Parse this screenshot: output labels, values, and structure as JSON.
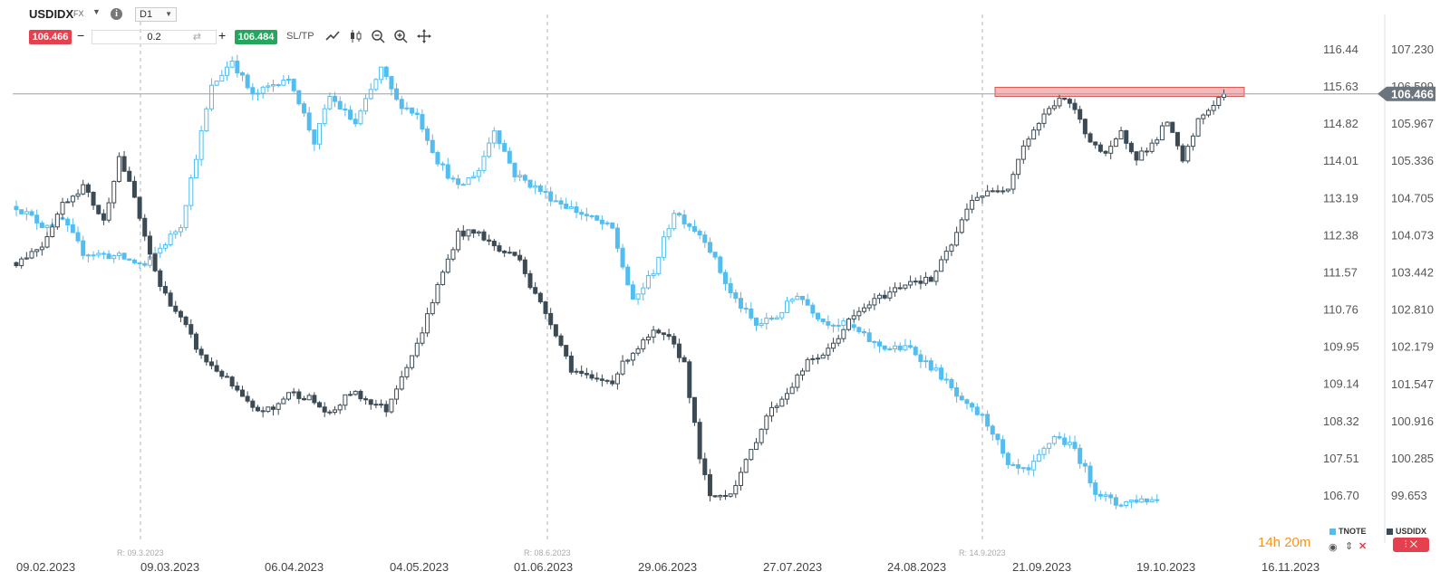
{
  "toolbar": {
    "symbol": "USDIDX",
    "symbol_type": "FX",
    "timeframe": "D1",
    "sell_price": "106.466",
    "buy_price": "106.484",
    "volume": "0.2",
    "minus": "−",
    "plus": "+",
    "sltp_label": "SL/TP",
    "icons": [
      "caret-down-icon",
      "info-icon",
      "line-chart-icon",
      "candle-type-icon",
      "zoom-out-icon",
      "zoom-in-icon",
      "move-icon"
    ]
  },
  "legend": {
    "series1": "TNOTE",
    "series2": "USDIDX",
    "timer": "14h 20m"
  },
  "colors": {
    "tnote": "#53bdf0",
    "usdidx": "#3b4a54",
    "sell": "#e5404d",
    "buy": "#24a65e",
    "resistance_zone": "#f4b9b9",
    "timer": "#f7941d"
  },
  "chart_data": {
    "type": "candlestick",
    "x_labels": [
      "09.02.2023",
      "09.03.2023",
      "06.04.2023",
      "04.05.2023",
      "01.06.2023",
      "29.06.2023",
      "27.07.2023",
      "24.08.2023",
      "21.09.2023",
      "19.10.2023",
      "16.11.2023"
    ],
    "y_axis_tnote": [
      "116.44",
      "115.63",
      "114.82",
      "114.01",
      "113.19",
      "112.38",
      "111.57",
      "110.76",
      "109.95",
      "109.14",
      "108.32",
      "107.51",
      "106.70"
    ],
    "y_axis_usdidx": [
      "107.230",
      "106.599",
      "105.967",
      "105.336",
      "104.705",
      "104.073",
      "103.442",
      "102.810",
      "102.179",
      "101.547",
      "100.916",
      "100.285",
      "99.653"
    ],
    "current_price_label": "106.466",
    "current_price": 106.466,
    "rollover_labels": [
      "R: 09.3.2023",
      "R: 08.6.2023",
      "R: 14.9.2023"
    ],
    "resistance_zone_usdidx": [
      106.47,
      106.53
    ],
    "grid": false,
    "series": [
      {
        "name": "TNOTE",
        "color": "#53bdf0",
        "keypoints": [
          [
            0,
            113.0
          ],
          [
            5,
            112.6
          ],
          [
            9,
            112.7
          ],
          [
            13,
            112.0
          ],
          [
            20,
            111.9
          ],
          [
            25,
            111.7
          ],
          [
            32,
            112.6
          ],
          [
            38,
            115.6
          ],
          [
            42,
            116.2
          ],
          [
            46,
            115.4
          ],
          [
            52,
            115.8
          ],
          [
            54,
            115.6
          ],
          [
            58,
            114.4
          ],
          [
            61,
            115.4
          ],
          [
            66,
            114.8
          ],
          [
            71,
            116.0
          ],
          [
            74,
            115.3
          ],
          [
            78,
            115.0
          ],
          [
            82,
            114.0
          ],
          [
            86,
            113.4
          ],
          [
            90,
            113.8
          ],
          [
            93,
            114.7
          ],
          [
            97,
            113.7
          ],
          [
            104,
            113.2
          ],
          [
            109,
            112.9
          ],
          [
            116,
            112.5
          ],
          [
            120,
            110.9
          ],
          [
            124,
            111.6
          ],
          [
            128,
            112.9
          ],
          [
            134,
            112.3
          ],
          [
            139,
            111.1
          ],
          [
            144,
            110.4
          ],
          [
            148,
            110.6
          ],
          [
            152,
            111.1
          ],
          [
            157,
            110.5
          ],
          [
            162,
            110.4
          ],
          [
            167,
            110.0
          ],
          [
            170,
            109.9
          ],
          [
            174,
            109.9
          ],
          [
            177,
            109.6
          ],
          [
            180,
            109.3
          ],
          [
            184,
            108.7
          ],
          [
            188,
            108.4
          ],
          [
            190,
            108.1
          ],
          [
            193,
            107.3
          ],
          [
            197,
            107.2
          ],
          [
            202,
            108.0
          ],
          [
            206,
            107.7
          ],
          [
            210,
            106.8
          ],
          [
            214,
            106.5
          ],
          [
            218,
            106.6
          ],
          [
            222,
            106.6
          ]
        ]
      },
      {
        "name": "USDIDX",
        "color": "#3b4a54",
        "keypoints": [
          [
            0,
            103.6
          ],
          [
            5,
            103.9
          ],
          [
            9,
            104.6
          ],
          [
            13,
            104.9
          ],
          [
            17,
            104.3
          ],
          [
            20,
            105.4
          ],
          [
            23,
            104.7
          ],
          [
            25,
            104.0
          ],
          [
            28,
            103.2
          ],
          [
            33,
            102.5
          ],
          [
            36,
            102.0
          ],
          [
            40,
            101.7
          ],
          [
            43,
            101.4
          ],
          [
            46,
            101.1
          ],
          [
            50,
            101.1
          ],
          [
            53,
            101.4
          ],
          [
            57,
            101.3
          ],
          [
            61,
            101.0
          ],
          [
            65,
            101.4
          ],
          [
            70,
            101.2
          ],
          [
            72,
            101.1
          ],
          [
            75,
            101.7
          ],
          [
            78,
            102.2
          ],
          [
            82,
            103.2
          ],
          [
            86,
            104.1
          ],
          [
            90,
            104.1
          ],
          [
            94,
            103.8
          ],
          [
            98,
            103.7
          ],
          [
            100,
            103.2
          ],
          [
            104,
            102.6
          ],
          [
            108,
            101.8
          ],
          [
            112,
            101.6
          ],
          [
            116,
            101.6
          ],
          [
            119,
            102.0
          ],
          [
            124,
            102.4
          ],
          [
            127,
            102.3
          ],
          [
            130,
            101.9
          ],
          [
            133,
            100.3
          ],
          [
            135,
            99.6
          ],
          [
            139,
            99.7
          ],
          [
            142,
            100.2
          ],
          [
            146,
            101.0
          ],
          [
            150,
            101.4
          ],
          [
            154,
            101.9
          ],
          [
            158,
            102.1
          ],
          [
            162,
            102.6
          ],
          [
            166,
            102.9
          ],
          [
            170,
            103.1
          ],
          [
            174,
            103.3
          ],
          [
            178,
            103.3
          ],
          [
            182,
            103.9
          ],
          [
            186,
            104.7
          ],
          [
            190,
            104.8
          ],
          [
            193,
            104.9
          ],
          [
            196,
            105.6
          ],
          [
            200,
            106.1
          ],
          [
            203,
            106.4
          ],
          [
            206,
            106.2
          ],
          [
            208,
            105.8
          ],
          [
            212,
            105.4
          ],
          [
            215,
            105.8
          ],
          [
            218,
            105.4
          ],
          [
            221,
            105.6
          ],
          [
            224,
            106.0
          ],
          [
            227,
            105.3
          ],
          [
            230,
            106.0
          ],
          [
            233,
            106.3
          ],
          [
            235,
            106.47
          ]
        ]
      }
    ]
  }
}
